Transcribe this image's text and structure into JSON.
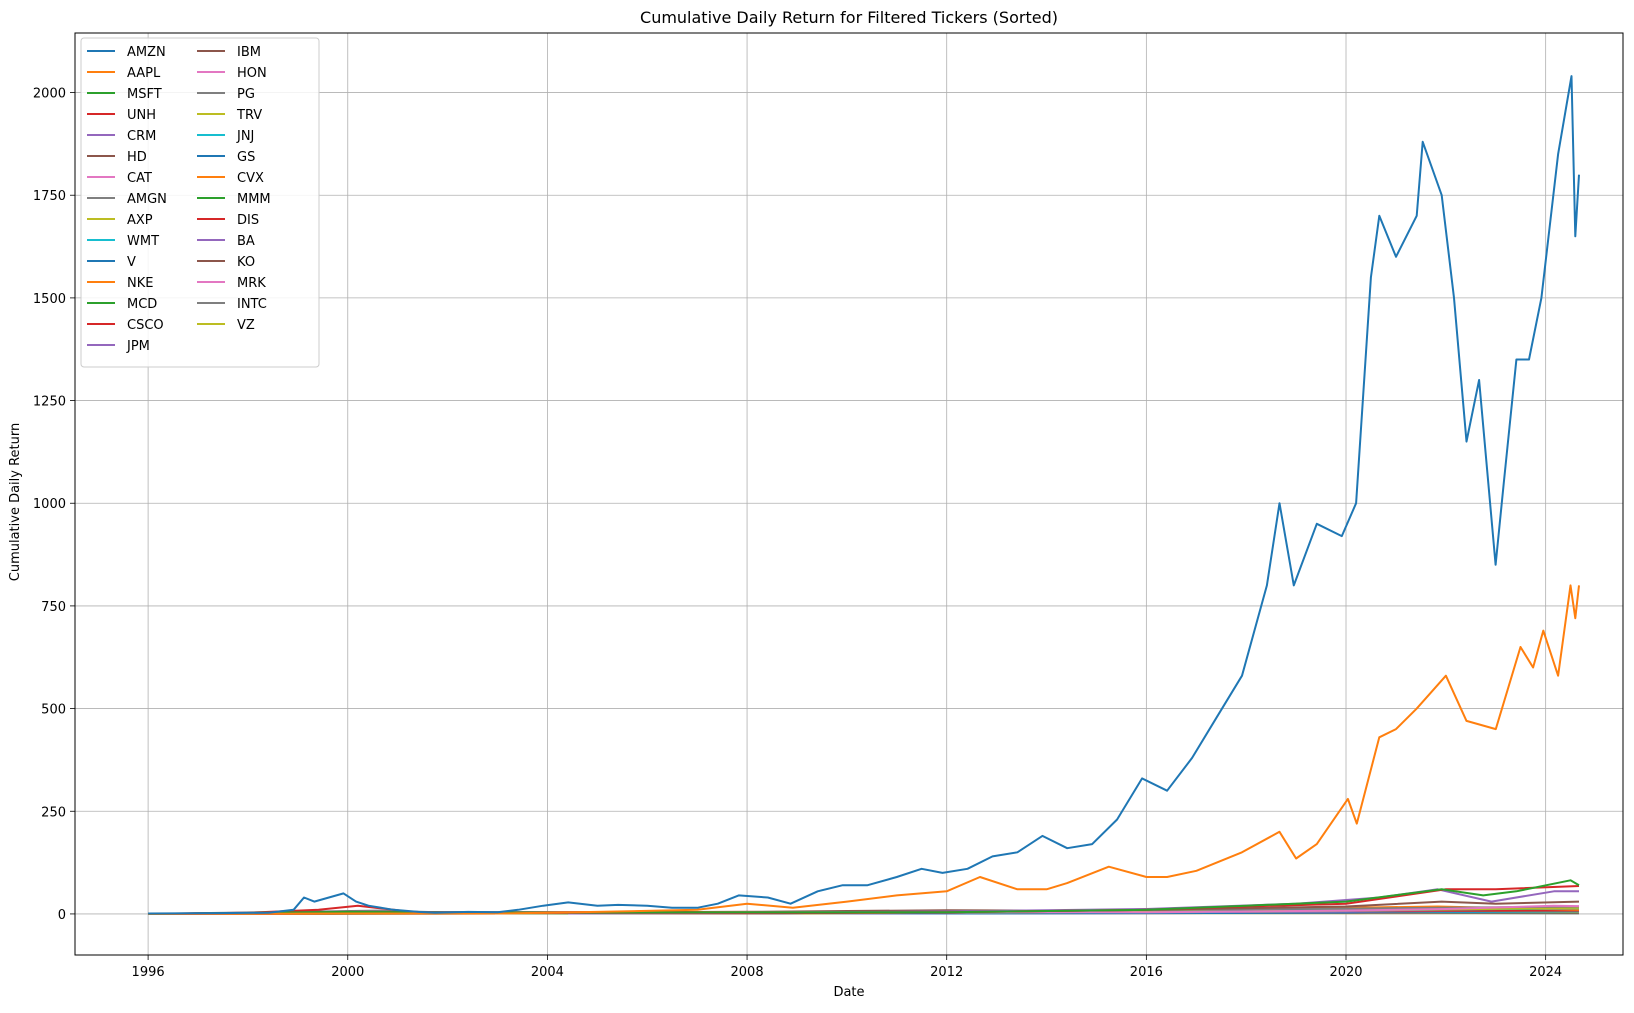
{
  "chart_data": {
    "type": "line",
    "title": "Cumulative Daily Return for Filtered Tickers (Sorted)",
    "xlabel": "Date",
    "ylabel": "Cumulative Daily Return",
    "x_ticks": [
      "1996",
      "2000",
      "2004",
      "2008",
      "2012",
      "2016",
      "2020",
      "2024"
    ],
    "y_ticks": [
      "0",
      "250",
      "500",
      "750",
      "1000",
      "1250",
      "1500",
      "1750",
      "2000"
    ],
    "xlim": [
      "1994-07-15",
      "2025-07-20"
    ],
    "ylim": [
      -100,
      2145
    ],
    "grid": true,
    "legend_position": "upper-left",
    "legend_columns": 2,
    "series": [
      {
        "name": "AMZN",
        "color": "#1f77b4",
        "x": [
          "1996-01-01",
          "1997-06-01",
          "1998-06-01",
          "1998-12-01",
          "1999-02-15",
          "1999-05-01",
          "1999-12-01",
          "2000-03-01",
          "2000-06-01",
          "2000-12-01",
          "2001-06-01",
          "2001-10-01",
          "2002-06-01",
          "2003-01-01",
          "2003-06-01",
          "2003-12-01",
          "2004-06-01",
          "2005-01-01",
          "2005-06-01",
          "2006-01-01",
          "2006-07-01",
          "2007-01-01",
          "2007-06-01",
          "2007-11-01",
          "2008-06-01",
          "2008-11-15",
          "2009-06-01",
          "2009-12-01",
          "2010-06-01",
          "2011-01-01",
          "2011-07-01",
          "2011-12-01",
          "2012-06-01",
          "2012-12-01",
          "2013-06-01",
          "2013-12-01",
          "2014-06-01",
          "2014-12-01",
          "2015-06-01",
          "2015-12-01",
          "2016-06-01",
          "2016-12-01",
          "2017-06-01",
          "2017-12-01",
          "2018-06-01",
          "2018-09-01",
          "2018-12-15",
          "2019-06-01",
          "2019-12-01",
          "2020-03-15",
          "2020-07-01",
          "2020-09-01",
          "2021-01-01",
          "2021-06-01",
          "2021-07-15",
          "2021-12-01",
          "2022-03-01",
          "2022-06-01",
          "2022-09-01",
          "2022-12-31",
          "2023-03-01",
          "2023-06-01",
          "2023-09-01",
          "2023-12-01",
          "2024-04-01",
          "2024-07-08",
          "2024-08-05",
          "2024-09-01"
        ],
        "values": [
          1,
          2,
          3,
          10,
          40,
          30,
          50,
          30,
          20,
          10,
          5,
          3,
          5,
          4,
          10,
          20,
          28,
          20,
          22,
          20,
          15,
          15,
          25,
          45,
          40,
          25,
          55,
          70,
          70,
          90,
          110,
          100,
          110,
          140,
          150,
          190,
          160,
          170,
          230,
          330,
          300,
          380,
          480,
          580,
          800,
          1000,
          800,
          950,
          920,
          1000,
          1550,
          1700,
          1600,
          1700,
          1880,
          1750,
          1500,
          1150,
          1300,
          850,
          1050,
          1350,
          1350,
          1500,
          1850,
          2040,
          1650,
          1800
        ]
      },
      {
        "name": "AAPL",
        "color": "#ff7f0e",
        "x": [
          "1996-01-01",
          "2000-01-01",
          "2003-01-01",
          "2005-01-01",
          "2007-01-01",
          "2008-01-01",
          "2008-12-01",
          "2010-01-01",
          "2011-01-01",
          "2012-01-01",
          "2012-09-01",
          "2013-06-01",
          "2014-01-01",
          "2014-06-01",
          "2015-04-01",
          "2016-01-01",
          "2016-06-01",
          "2017-01-01",
          "2017-12-01",
          "2018-09-01",
          "2019-01-01",
          "2019-06-01",
          "2020-01-15",
          "2020-03-20",
          "2020-09-01",
          "2021-01-01",
          "2021-06-01",
          "2022-01-01",
          "2022-06-01",
          "2023-01-01",
          "2023-07-01",
          "2023-10-01",
          "2023-12-15",
          "2024-04-01",
          "2024-07-01",
          "2024-08-05",
          "2024-09-01"
        ],
        "values": [
          0,
          1,
          1,
          5,
          10,
          25,
          15,
          30,
          45,
          55,
          90,
          60,
          60,
          75,
          115,
          90,
          90,
          105,
          150,
          200,
          135,
          170,
          280,
          220,
          430,
          450,
          500,
          580,
          470,
          450,
          650,
          600,
          690,
          580,
          800,
          720,
          800
        ]
      },
      {
        "name": "MSFT",
        "color": "#2ca02c",
        "x": [
          "1996-01-01",
          "2000-01-01",
          "2002-01-01",
          "2008-01-01",
          "2012-01-01",
          "2016-01-01",
          "2018-01-01",
          "2020-01-01",
          "2021-12-01",
          "2022-10-01",
          "2023-06-01",
          "2024-07-01",
          "2024-09-01"
        ],
        "values": [
          0,
          5,
          3,
          4,
          4,
          10,
          20,
          30,
          60,
          45,
          55,
          82,
          70
        ]
      },
      {
        "name": "UNH",
        "color": "#d62728",
        "x": [
          "1996-01-01",
          "2000-01-01",
          "2004-01-01",
          "2008-01-01",
          "2012-01-01",
          "2016-01-01",
          "2018-01-01",
          "2020-01-01",
          "2022-01-01",
          "2023-01-01",
          "2024-09-01"
        ],
        "values": [
          0,
          1,
          3,
          3,
          4,
          10,
          18,
          25,
          60,
          60,
          68
        ]
      },
      {
        "name": "CRM",
        "color": "#9467bd",
        "x": [
          "2004-06-01",
          "2008-01-01",
          "2012-01-01",
          "2016-01-01",
          "2019-01-01",
          "2020-09-01",
          "2021-11-01",
          "2022-12-01",
          "2024-03-01",
          "2024-09-01"
        ],
        "values": [
          1,
          3,
          6,
          12,
          25,
          40,
          60,
          30,
          55,
          55
        ]
      },
      {
        "name": "HD",
        "color": "#8c564b",
        "x": [
          "1996-01-01",
          "2000-01-01",
          "2004-01-01",
          "2008-06-01",
          "2012-01-01",
          "2016-01-01",
          "2020-01-01",
          "2021-12-01",
          "2023-01-01",
          "2024-09-01"
        ],
        "values": [
          0,
          5,
          3,
          1,
          4,
          10,
          18,
          30,
          25,
          30
        ]
      },
      {
        "name": "CAT",
        "color": "#e377c2",
        "x": [
          "1996-01-01",
          "2004-01-01",
          "2008-01-01",
          "2012-01-01",
          "2016-01-01",
          "2020-01-01",
          "2022-01-01",
          "2024-03-01",
          "2024-09-01"
        ],
        "values": [
          0,
          2,
          4,
          5,
          4,
          8,
          12,
          20,
          19
        ]
      },
      {
        "name": "AMGN",
        "color": "#7f7f7f",
        "x": [
          "1996-01-01",
          "2000-01-01",
          "2004-01-01",
          "2008-01-01",
          "2012-01-01",
          "2016-01-01",
          "2020-01-01",
          "2024-09-01"
        ],
        "values": [
          0,
          4,
          4,
          3,
          5,
          10,
          13,
          18
        ]
      },
      {
        "name": "AXP",
        "color": "#bcbd22",
        "x": [
          "1996-01-01",
          "2004-01-01",
          "2008-01-01",
          "2009-03-01",
          "2012-01-01",
          "2016-01-01",
          "2020-01-01",
          "2024-09-01"
        ],
        "values": [
          0,
          3,
          4,
          1,
          4,
          5,
          8,
          15
        ]
      },
      {
        "name": "WMT",
        "color": "#17becf",
        "x": [
          "1996-01-01",
          "2000-01-01",
          "2008-01-01",
          "2016-01-01",
          "2020-01-01",
          "2024-09-01"
        ],
        "values": [
          0,
          4,
          3,
          4,
          8,
          14
        ]
      },
      {
        "name": "V",
        "color": "#1f77b4",
        "x": [
          "2008-03-01",
          "2012-01-01",
          "2016-01-01",
          "2020-01-01",
          "2024-09-01"
        ],
        "values": [
          1,
          3,
          7,
          12,
          16
        ]
      },
      {
        "name": "NKE",
        "color": "#ff7f0e",
        "x": [
          "1996-01-01",
          "2004-01-01",
          "2008-01-01",
          "2012-01-01",
          "2016-01-01",
          "2021-11-01",
          "2024-09-01"
        ],
        "values": [
          0,
          2,
          3,
          5,
          8,
          18,
          10
        ]
      },
      {
        "name": "MCD",
        "color": "#2ca02c",
        "x": [
          "1996-01-01",
          "2004-01-01",
          "2008-01-01",
          "2012-01-01",
          "2016-01-01",
          "2020-01-01",
          "2024-09-01"
        ],
        "values": [
          0,
          1,
          3,
          5,
          7,
          10,
          13
        ]
      },
      {
        "name": "CSCO",
        "color": "#d62728",
        "x": [
          "1996-01-01",
          "1998-01-01",
          "1999-06-01",
          "2000-03-15",
          "2000-12-01",
          "2001-06-01",
          "2004-01-01",
          "2008-01-01",
          "2012-01-01",
          "2016-01-01",
          "2020-01-01",
          "2024-09-01"
        ],
        "values": [
          0,
          3,
          10,
          20,
          10,
          3,
          4,
          5,
          3,
          5,
          8,
          8
        ]
      },
      {
        "name": "JPM",
        "color": "#9467bd",
        "x": [
          "1996-01-01",
          "2000-01-01",
          "2004-01-01",
          "2008-01-01",
          "2009-03-01",
          "2012-01-01",
          "2016-01-01",
          "2020-01-01",
          "2024-09-01"
        ],
        "values": [
          0,
          3,
          2,
          3,
          1,
          2,
          4,
          6,
          10
        ]
      },
      {
        "name": "IBM",
        "color": "#8c564b",
        "x": [
          "1996-01-01",
          "2000-01-01",
          "2004-01-01",
          "2008-01-01",
          "2012-01-01",
          "2016-01-01",
          "2020-01-01",
          "2024-09-01"
        ],
        "values": [
          0,
          5,
          4,
          5,
          9,
          7,
          6,
          9
        ]
      },
      {
        "name": "HON",
        "color": "#e377c2",
        "x": [
          "1996-01-01",
          "2004-01-01",
          "2008-01-01",
          "2012-01-01",
          "2016-01-01",
          "2020-01-01",
          "2024-09-01"
        ],
        "values": [
          0,
          2,
          3,
          4,
          7,
          10,
          11
        ]
      },
      {
        "name": "PG",
        "color": "#7f7f7f",
        "x": [
          "1996-01-01",
          "2004-01-01",
          "2008-01-01",
          "2012-01-01",
          "2016-01-01",
          "2020-01-01",
          "2024-09-01"
        ],
        "values": [
          0,
          2,
          3,
          3,
          4,
          6,
          8
        ]
      },
      {
        "name": "TRV",
        "color": "#bcbd22",
        "x": [
          "1996-01-01",
          "2004-01-01",
          "2008-01-01",
          "2012-01-01",
          "2016-01-01",
          "2020-01-01",
          "2024-09-01"
        ],
        "values": [
          0,
          2,
          2,
          3,
          5,
          6,
          9
        ]
      },
      {
        "name": "JNJ",
        "color": "#17becf",
        "x": [
          "1996-01-01",
          "2004-01-01",
          "2008-01-01",
          "2012-01-01",
          "2016-01-01",
          "2020-01-01",
          "2024-09-01"
        ],
        "values": [
          0,
          2,
          3,
          3,
          4,
          6,
          6
        ]
      },
      {
        "name": "GS",
        "color": "#1f77b4",
        "x": [
          "1999-05-01",
          "2004-01-01",
          "2007-10-01",
          "2008-11-01",
          "2012-01-01",
          "2016-01-01",
          "2020-01-01",
          "2024-09-01"
        ],
        "values": [
          1,
          2,
          3,
          1,
          1,
          2,
          3,
          6
        ]
      },
      {
        "name": "CVX",
        "color": "#ff7f0e",
        "x": [
          "1996-01-01",
          "2004-01-01",
          "2008-06-01",
          "2012-01-01",
          "2016-01-01",
          "2020-04-01",
          "2022-06-01",
          "2024-09-01"
        ],
        "values": [
          0,
          2,
          4,
          4,
          4,
          2,
          5,
          5
        ]
      },
      {
        "name": "MMM",
        "color": "#2ca02c",
        "x": [
          "1996-01-01",
          "2004-01-01",
          "2008-01-01",
          "2012-01-01",
          "2016-01-01",
          "2018-01-01",
          "2020-01-01",
          "2024-09-01"
        ],
        "values": [
          0,
          2,
          3,
          3,
          5,
          6,
          4,
          4
        ]
      },
      {
        "name": "DIS",
        "color": "#d62728",
        "x": [
          "1996-01-01",
          "2004-01-01",
          "2008-01-01",
          "2012-01-01",
          "2016-01-01",
          "2021-03-01",
          "2024-09-01"
        ],
        "values": [
          0,
          1,
          2,
          3,
          5,
          8,
          4
        ]
      },
      {
        "name": "BA",
        "color": "#9467bd",
        "x": [
          "1996-01-01",
          "2004-01-01",
          "2008-01-01",
          "2012-01-01",
          "2016-01-01",
          "2019-03-01",
          "2020-03-20",
          "2024-09-01"
        ],
        "values": [
          0,
          1,
          2,
          2,
          4,
          10,
          3,
          4
        ]
      },
      {
        "name": "KO",
        "color": "#8c564b",
        "x": [
          "1996-01-01",
          "2004-01-01",
          "2008-01-01",
          "2012-01-01",
          "2016-01-01",
          "2020-01-01",
          "2024-09-01"
        ],
        "values": [
          0,
          1,
          1,
          2,
          2,
          3,
          3
        ]
      },
      {
        "name": "MRK",
        "color": "#e377c2",
        "x": [
          "1996-01-01",
          "2004-01-01",
          "2008-01-01",
          "2012-01-01",
          "2016-01-01",
          "2020-01-01",
          "2024-09-01"
        ],
        "values": [
          0,
          2,
          1,
          1,
          2,
          3,
          4
        ]
      },
      {
        "name": "INTC",
        "color": "#7f7f7f",
        "x": [
          "1996-01-01",
          "2000-08-01",
          "2002-10-01",
          "2008-01-01",
          "2012-01-01",
          "2016-01-01",
          "2020-01-01",
          "2024-09-01"
        ],
        "values": [
          0,
          8,
          1,
          2,
          2,
          3,
          4,
          1
        ]
      },
      {
        "name": "VZ",
        "color": "#bcbd22",
        "x": [
          "1996-01-01",
          "2000-01-01",
          "2004-01-01",
          "2008-01-01",
          "2012-01-01",
          "2016-01-01",
          "2020-01-01",
          "2024-09-01"
        ],
        "values": [
          0,
          1,
          1,
          1,
          1,
          2,
          2,
          2
        ]
      }
    ]
  }
}
